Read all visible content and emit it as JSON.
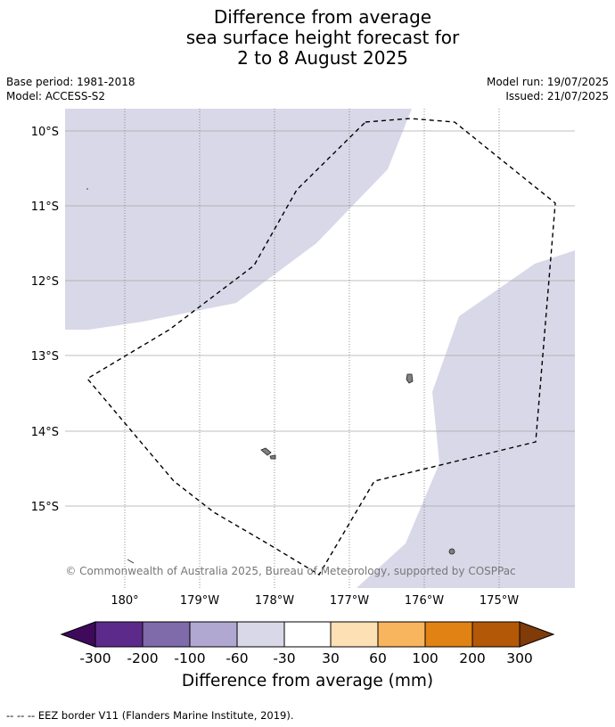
{
  "title": {
    "line1": "Difference from average",
    "line2": "sea surface height forecast for",
    "line3": "2 to 8 August 2025"
  },
  "meta": {
    "base_period": "Base period: 1981-2018",
    "model": "Model: ACCESS-S2",
    "model_run": "Model run: 19/07/2025",
    "issued": "Issued: 21/07/2025"
  },
  "map": {
    "extent": {
      "lon_min": -179.8,
      "lon_max": -174.0,
      "lat_min": -16.1,
      "lat_max": -9.7
    },
    "lat_labels": [
      "10°S",
      "11°S",
      "12°S",
      "13°S",
      "14°S",
      "15°S"
    ],
    "lon_labels": [
      "180°",
      "179°W",
      "178°W",
      "177°W",
      "176°W",
      "175°W"
    ],
    "credit": "© Commonwealth of Australia 2025, Bureau of Meteorology, supported by COSPPac",
    "anomaly_fill_color": "#d8d8e8",
    "land_color": "#808080"
  },
  "colorbar": {
    "tick_labels": [
      "-300",
      "-200",
      "-100",
      "-60",
      "-30",
      "30",
      "60",
      "100",
      "200",
      "300"
    ],
    "colors": [
      "#3f0a5c",
      "#5c2a8a",
      "#7f6aaa",
      "#b0a8d0",
      "#d8d8e8",
      "#ffffff",
      "#fde0b4",
      "#f9b45e",
      "#e08214",
      "#b35806",
      "#7f3b08"
    ],
    "label": "Difference from average (mm)"
  },
  "legend": {
    "eez": "--  --  -- EEZ border V11 (Flanders Marine Institute, 2019)."
  }
}
